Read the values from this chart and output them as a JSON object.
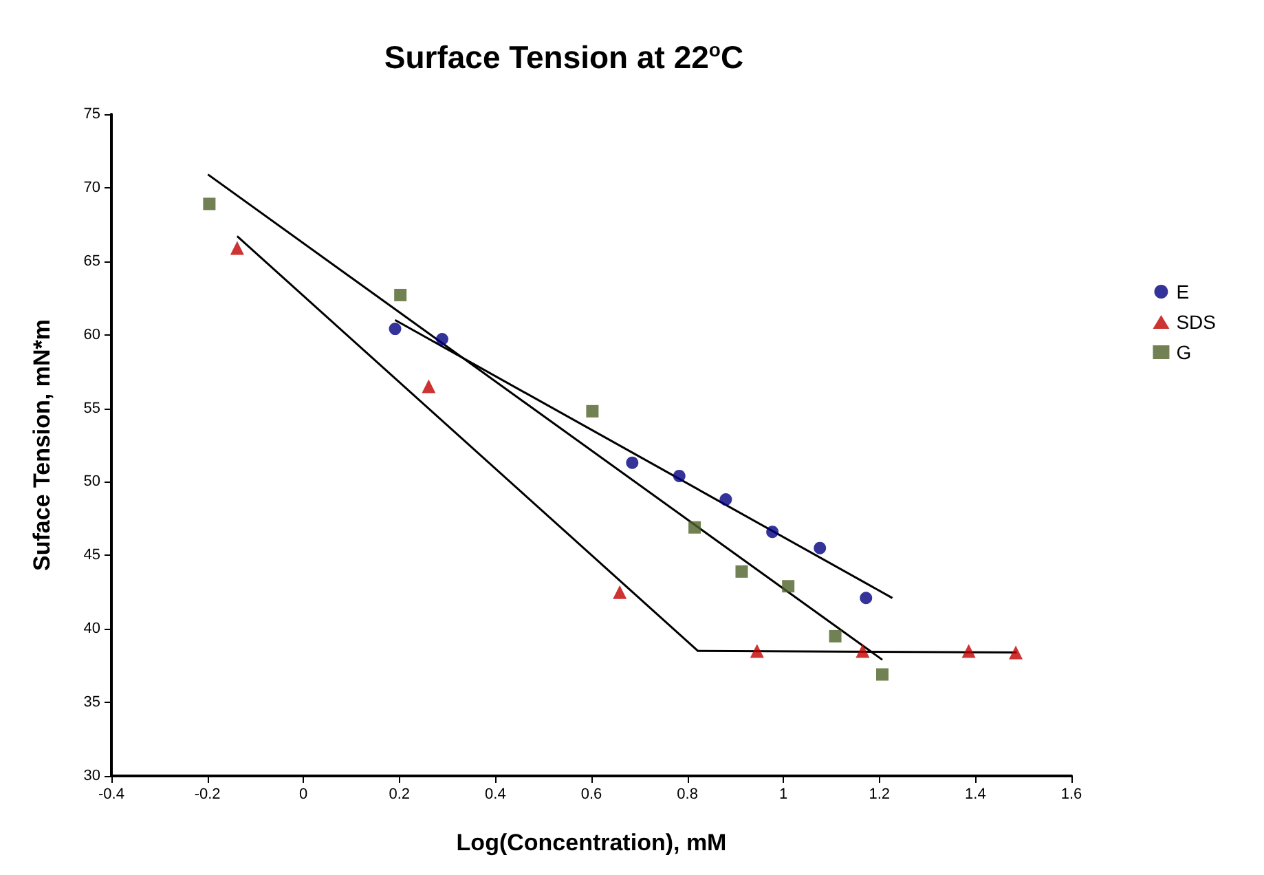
{
  "chart_data": {
    "type": "scatter",
    "title": "Surface Tension at 22$^{o}$C",
    "xlabel": "Log(Concentration), mM",
    "ylabel": "Suface Tension, mN*m",
    "xlim": [
      -0.4,
      1.6
    ],
    "xticks": [
      -0.4,
      -0.2,
      0,
      0.2,
      0.4,
      0.6,
      0.8,
      1,
      1.2,
      1.4,
      1.6
    ],
    "ylim": [
      30,
      75
    ],
    "yticks": [
      30,
      35,
      40,
      45,
      50,
      55,
      60,
      65,
      70,
      75
    ],
    "grid": false,
    "legend": "right",
    "series": [
      {
        "name": "E",
        "color": "#000080",
        "marker": "circle",
        "x": [
          0.191,
          0.289,
          0.685,
          0.783,
          0.88,
          0.977,
          1.076,
          1.172
        ],
        "values": [
          60.4,
          59.7,
          51.3,
          50.4,
          48.8,
          46.6,
          45.5,
          42.1
        ]
      },
      {
        "name": "SDS",
        "color": "#c00000",
        "marker": "triangle",
        "x": [
          -0.138,
          0.261,
          0.659,
          0.945,
          1.165,
          1.386,
          1.484
        ],
        "values": [
          65.9,
          56.5,
          42.5,
          38.5,
          38.5,
          38.5,
          38.4
        ]
      },
      {
        "name": "G",
        "color": "#4f6228",
        "marker": "square",
        "x": [
          -0.196,
          0.202,
          0.602,
          0.815,
          0.913,
          1.01,
          1.108,
          1.206
        ],
        "values": [
          68.9,
          62.7,
          54.8,
          46.9,
          43.9,
          42.9,
          39.5,
          36.9
        ]
      },
      {
        "type": "line",
        "color": "#000000",
        "marker": "none",
        "x": [
          0.191,
          1.227
        ],
        "values": [
          61.0,
          42.1
        ]
      },
      {
        "type": "line",
        "color": "#000000",
        "marker": "none",
        "x": [
          -0.199,
          1.206
        ],
        "values": [
          70.9,
          37.9
        ]
      },
      {
        "type": "line",
        "color": "#000000",
        "marker": "none",
        "x": [
          -0.138,
          0.822,
          1.486
        ],
        "values": [
          66.7,
          38.5,
          38.4
        ]
      }
    ]
  }
}
